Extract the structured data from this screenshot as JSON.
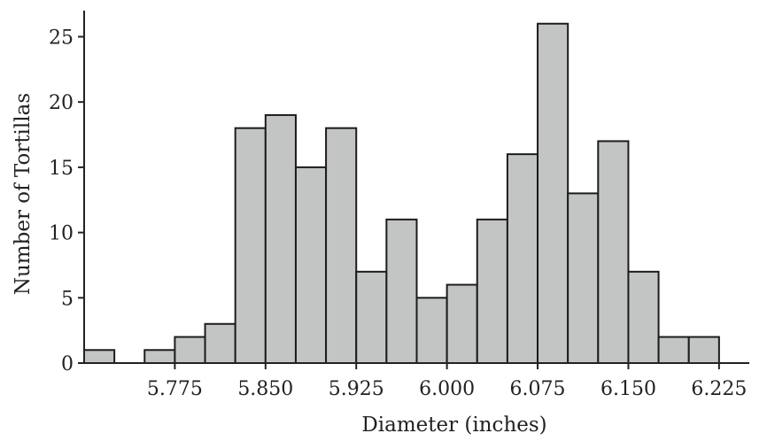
{
  "chart_data": {
    "type": "bar",
    "xlabel": "Diameter (inches)",
    "ylabel": "Number of Tortillas",
    "bin_width": 0.025,
    "bin_starts": [
      5.7,
      5.725,
      5.75,
      5.775,
      5.8,
      5.825,
      5.85,
      5.875,
      5.9,
      5.925,
      5.95,
      5.975,
      6.0,
      6.025,
      6.05,
      6.075,
      6.1,
      6.125,
      6.15,
      6.175,
      6.2,
      6.225
    ],
    "values": [
      1,
      0,
      1,
      2,
      3,
      18,
      19,
      15,
      18,
      7,
      11,
      5,
      6,
      11,
      16,
      26,
      13,
      17,
      7,
      2,
      2,
      0
    ],
    "xlim": [
      5.7,
      6.25
    ],
    "ylim": [
      0,
      27
    ],
    "x_ticks": [
      "5.775",
      "5.850",
      "5.925",
      "6.000",
      "6.075",
      "6.150",
      "6.225"
    ],
    "y_ticks": [
      "0",
      "5",
      "10",
      "15",
      "20",
      "25"
    ],
    "grid": false,
    "bar_fill": "#c3c5c5",
    "bar_stroke": "#1c1c1c"
  }
}
